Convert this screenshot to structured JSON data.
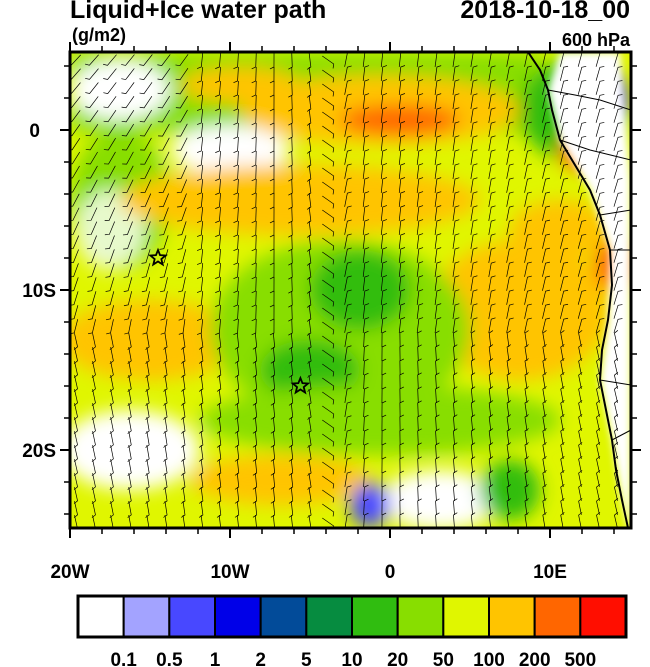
{
  "header": {
    "title": "Liquid+Ice water path",
    "units": "(g/m2)",
    "datetime": "2018-10-18_00",
    "level": "600 hPa"
  },
  "map": {
    "lon_ticks": [
      "20W",
      "10W",
      "0",
      "10E"
    ],
    "lat_ticks": [
      "0",
      "10S",
      "20S"
    ],
    "markers": [
      {
        "type": "star",
        "lon": -14.5,
        "lat": -8
      },
      {
        "type": "star",
        "lon": -5.6,
        "lat": -16
      }
    ]
  },
  "colorbar": {
    "colors": [
      "#ffffff",
      "#a3a3ff",
      "#4848ff",
      "#0000e8",
      "#024b99",
      "#068c40",
      "#30bd10",
      "#88de00",
      "#e0f600",
      "#ffc400",
      "#ff6600",
      "#ff0e00"
    ],
    "labels": [
      "0.1",
      "0.5",
      "1",
      "2",
      "5",
      "10",
      "20",
      "50",
      "100",
      "200",
      "500"
    ]
  }
}
